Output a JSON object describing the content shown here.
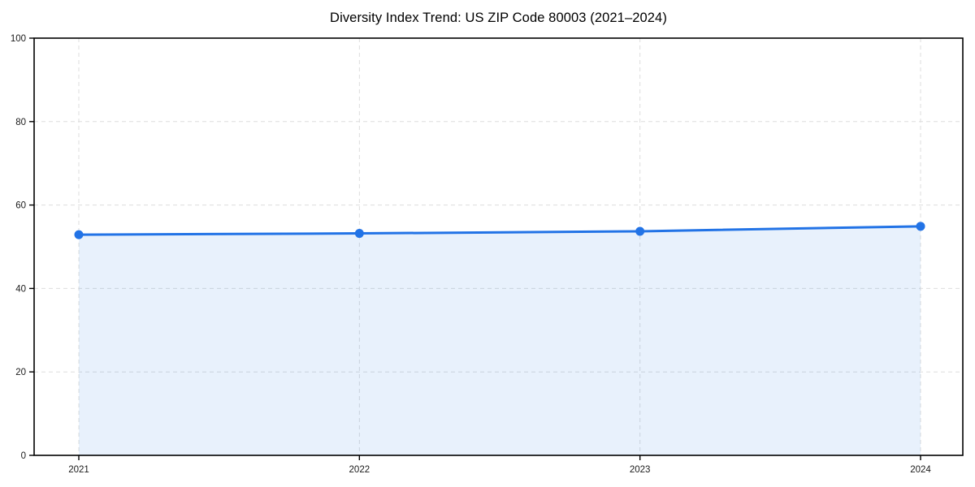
{
  "chart_data": {
    "type": "area",
    "title": "Diversity Index Trend: US ZIP Code 80003 (2021–2024)",
    "categories": [
      "2021",
      "2022",
      "2023",
      "2024"
    ],
    "series": [
      {
        "name": "Diversity Index",
        "values": [
          52.9,
          53.2,
          53.7,
          54.9
        ]
      }
    ],
    "xlabel": "",
    "ylabel": "",
    "ylim": [
      0,
      100
    ],
    "yticks": [
      0,
      20,
      40,
      60,
      80,
      100
    ],
    "grid": true,
    "grid_style": "dashed",
    "legend_position": "none",
    "marker": "circle",
    "colors": {
      "line": "#2273e6",
      "marker": "#2273e6",
      "fill": "rgba(34,115,230,0.10)",
      "grid": "#dddddd",
      "axis": "#000000",
      "tick_text": "#1a1a1a",
      "background": "#ffffff"
    }
  }
}
